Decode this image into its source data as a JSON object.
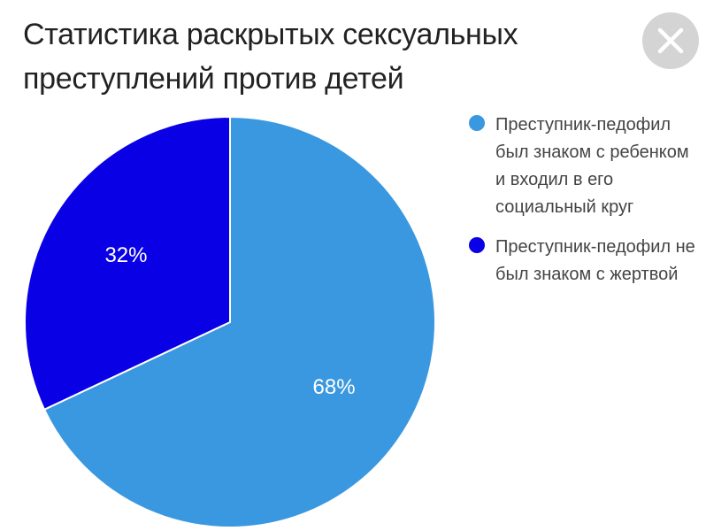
{
  "title": "Статистика раскрытых сексуальных преступлений против детей",
  "close_icon": "close-icon",
  "colors": {
    "close_bg": "#d4d4d4",
    "close_fg": "#ffffff"
  },
  "chart_data": {
    "type": "pie",
    "title": "Статистика раскрытых сексуальных преступлений против детей",
    "legend_position": "right",
    "slices": [
      {
        "label": "Преступник-педофил был знаком с ребенком и входил в его социальный круг",
        "value": 68,
        "display": "68%",
        "color": "#3a98e0"
      },
      {
        "label": "Преступник-педофил не был знаком с жертвой",
        "value": 32,
        "display": "32%",
        "color": "#0a00e6"
      }
    ]
  }
}
